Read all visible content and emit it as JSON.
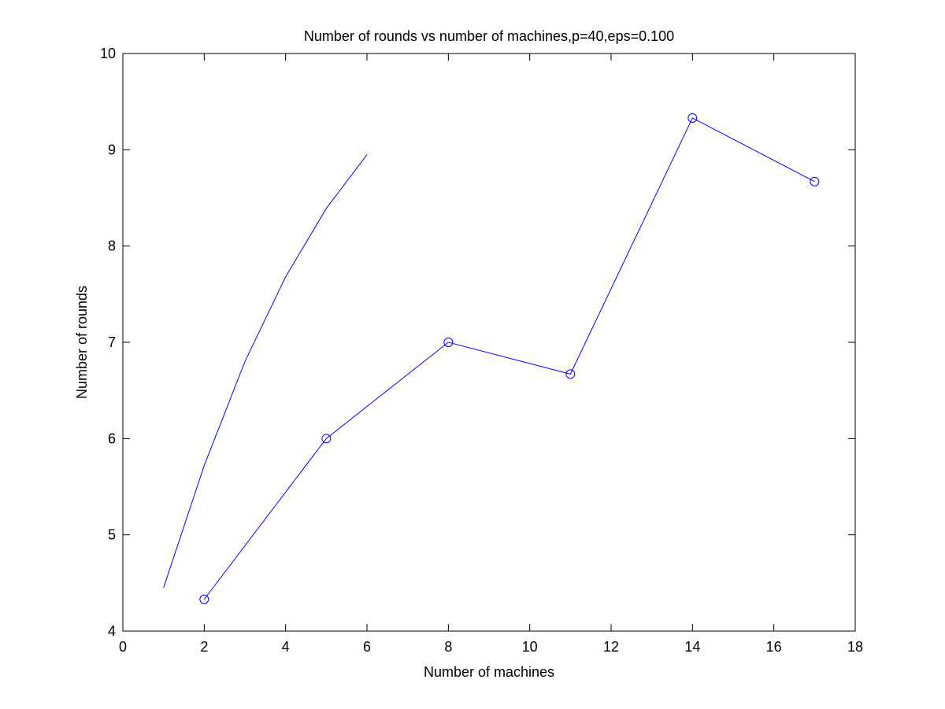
{
  "chart_data": {
    "type": "line",
    "title": "Number of rounds vs number of machines,p=40,eps=0.100",
    "xlabel": "Number of machines",
    "ylabel": "Number of rounds",
    "xlim": [
      0,
      18
    ],
    "ylim": [
      4,
      10
    ],
    "xticks": [
      0,
      2,
      4,
      6,
      8,
      10,
      12,
      14,
      16,
      18
    ],
    "yticks": [
      4,
      5,
      6,
      7,
      8,
      9,
      10
    ],
    "grid": false,
    "legend": "none",
    "series": [
      {
        "x": [
          1,
          2,
          3,
          4,
          5,
          6
        ],
        "values": [
          4.45,
          5.72,
          6.8,
          7.68,
          8.39,
          8.95
        ],
        "color": "#0000ff",
        "marker": "none"
      },
      {
        "x": [
          2,
          5,
          8,
          11,
          14,
          17
        ],
        "values": [
          4.33,
          6.0,
          7.0,
          6.67,
          9.33,
          8.67
        ],
        "color": "#0000ff",
        "marker": "circle"
      }
    ]
  }
}
